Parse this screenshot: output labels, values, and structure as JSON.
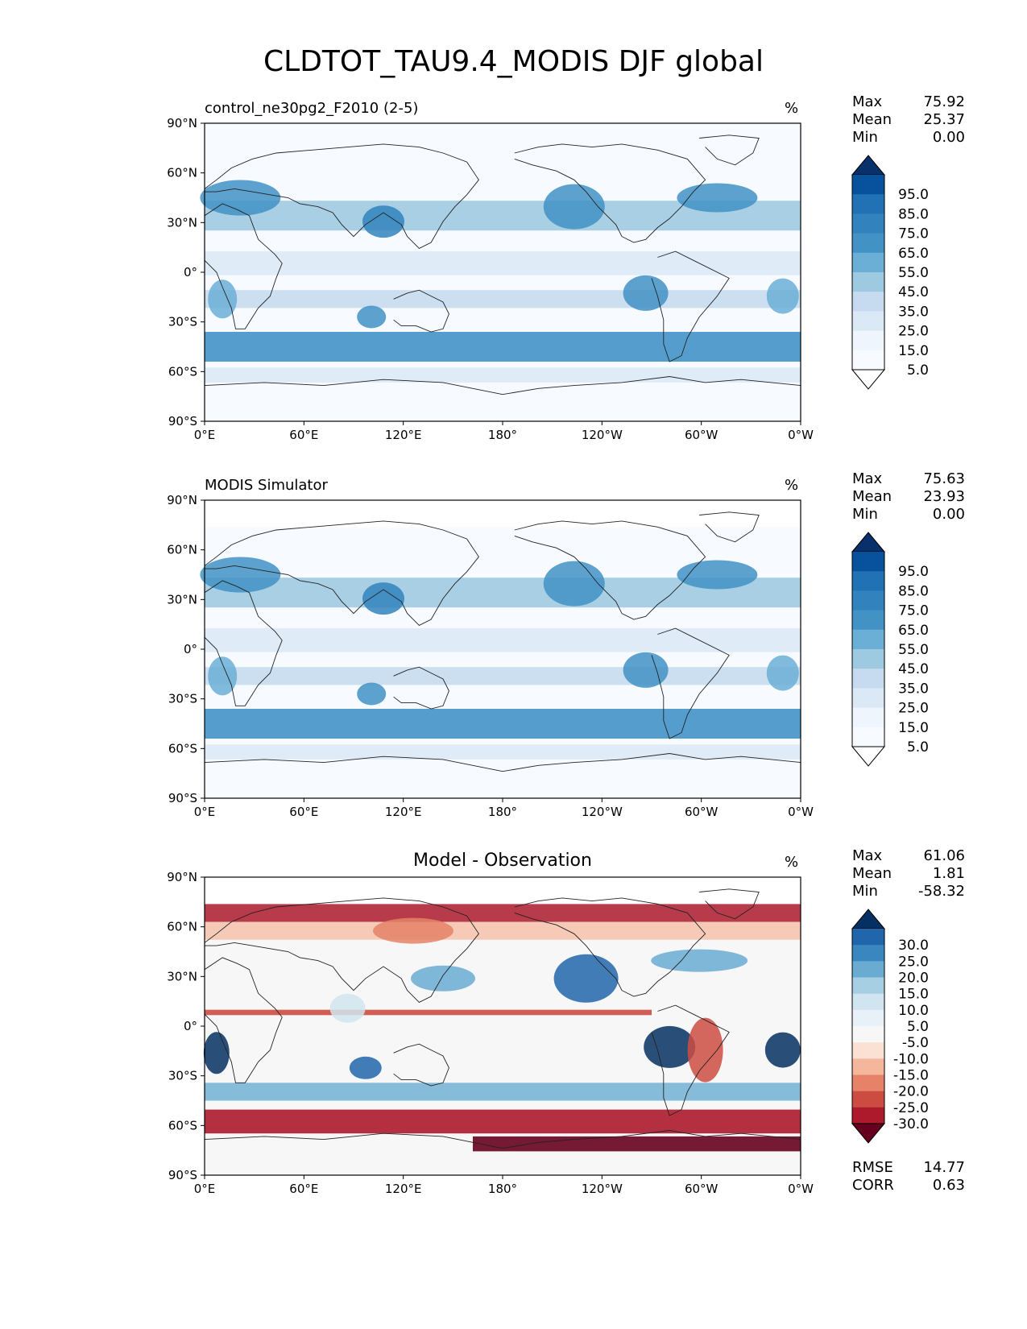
{
  "figure": {
    "title": "CLDTOT_TAU9.4_MODIS DJF global"
  },
  "axes": {
    "lat_ticks": [
      "90°N",
      "60°N",
      "30°N",
      "0°",
      "30°S",
      "60°S",
      "90°S"
    ],
    "lon_ticks": [
      "0°E",
      "60°E",
      "120°E",
      "180°",
      "120°W",
      "60°W",
      "0°W"
    ]
  },
  "panels": [
    {
      "title": "control_ne30pg2_F2010 (2-5)",
      "title_style": "left",
      "units": "%",
      "stats": [
        {
          "label": "Max",
          "value": "75.92"
        },
        {
          "label": "Mean",
          "value": "25.37"
        },
        {
          "label": "Min",
          "value": "0.00"
        }
      ],
      "colorbar": {
        "labels": [
          "95.0",
          "85.0",
          "75.0",
          "65.0",
          "55.0",
          "45.0",
          "35.0",
          "25.0",
          "15.0",
          "5.0"
        ],
        "colors": [
          "#08306b",
          "#08519c",
          "#2171b5",
          "#3182bd",
          "#4292c6",
          "#6baed6",
          "#9ecae1",
          "#c6dbef",
          "#dbe9f6",
          "#eef5fc",
          "#f7fbff",
          "#ffffff"
        ]
      },
      "footer": []
    },
    {
      "title": "MODIS Simulator",
      "title_style": "left",
      "units": "%",
      "stats": [
        {
          "label": "Max",
          "value": "75.63"
        },
        {
          "label": "Mean",
          "value": "23.93"
        },
        {
          "label": "Min",
          "value": "0.00"
        }
      ],
      "colorbar": {
        "labels": [
          "95.0",
          "85.0",
          "75.0",
          "65.0",
          "55.0",
          "45.0",
          "35.0",
          "25.0",
          "15.0",
          "5.0"
        ],
        "colors": [
          "#08306b",
          "#08519c",
          "#2171b5",
          "#3182bd",
          "#4292c6",
          "#6baed6",
          "#9ecae1",
          "#c6dbef",
          "#dbe9f6",
          "#eef5fc",
          "#f7fbff",
          "#ffffff"
        ]
      },
      "footer": []
    },
    {
      "title": "Model - Observation",
      "title_style": "center",
      "units": "%",
      "stats": [
        {
          "label": "Max",
          "value": "61.06"
        },
        {
          "label": "Mean",
          "value": "1.81"
        },
        {
          "label": "Min",
          "value": "-58.32"
        }
      ],
      "colorbar": {
        "labels": [
          "30.0",
          "25.0",
          "20.0",
          "15.0",
          "10.0",
          "5.0",
          "-5.0",
          "-10.0",
          "-15.0",
          "-20.0",
          "-25.0",
          "-30.0"
        ],
        "colors": [
          "#053061",
          "#2166ac",
          "#3a87c0",
          "#6aabd2",
          "#a6cfe4",
          "#d1e5f0",
          "#e8f1f7",
          "#f7f7f7",
          "#fbe1d4",
          "#f5b79b",
          "#e58268",
          "#cc4c42",
          "#ac1a2b",
          "#67001f"
        ]
      },
      "footer": [
        {
          "label": "RMSE",
          "value": "14.77"
        },
        {
          "label": "CORR",
          "value": "0.63"
        }
      ]
    }
  ]
}
